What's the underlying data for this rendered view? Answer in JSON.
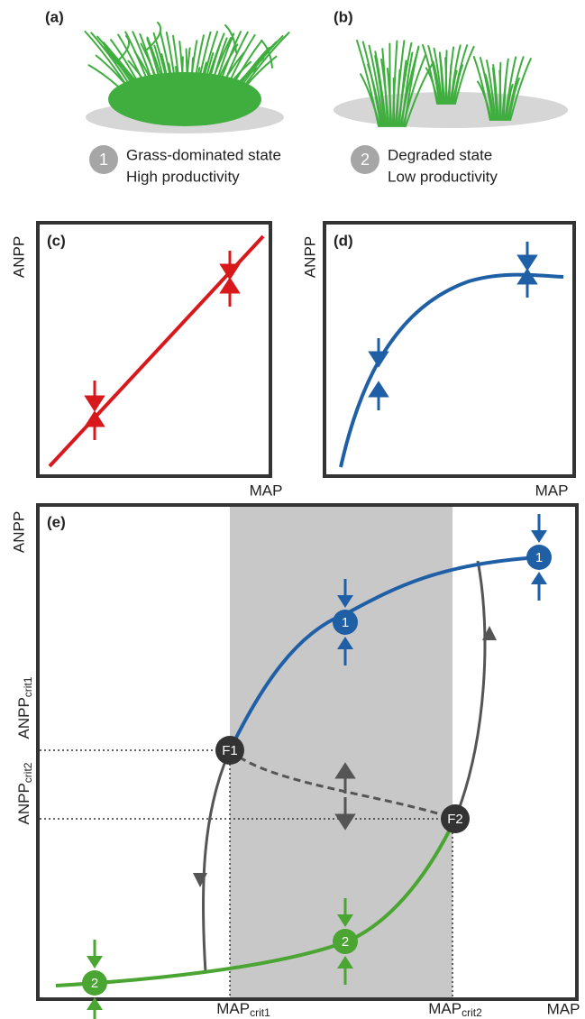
{
  "panel_a": {
    "label": "(a)",
    "state_number": "1",
    "state_name": "Grass-dominated state",
    "productivity": "High productivity"
  },
  "panel_b": {
    "label": "(b)",
    "state_number": "2",
    "state_name": "Degraded state",
    "productivity": "Low productivity"
  },
  "panel_c": {
    "label": "(c)",
    "y_axis": "ANPP",
    "x_axis": "MAP"
  },
  "panel_d": {
    "label": "(d)",
    "y_axis": "ANPP",
    "x_axis": "MAP"
  },
  "panel_e": {
    "label": "(e)",
    "y_axis": "ANPP",
    "x_axis": "MAP",
    "y_crit1": {
      "main": "ANPP",
      "sub": "crit1"
    },
    "y_crit2": {
      "main": "ANPP",
      "sub": "crit2"
    },
    "x_crit1": {
      "main": "MAP",
      "sub": "crit1"
    },
    "x_crit2": {
      "main": "MAP",
      "sub": "crit2"
    },
    "nodes": [
      {
        "label": "1"
      },
      {
        "label": "1"
      },
      {
        "label": "2"
      },
      {
        "label": "2"
      },
      {
        "label": "F1"
      },
      {
        "label": "F2"
      }
    ]
  }
}
